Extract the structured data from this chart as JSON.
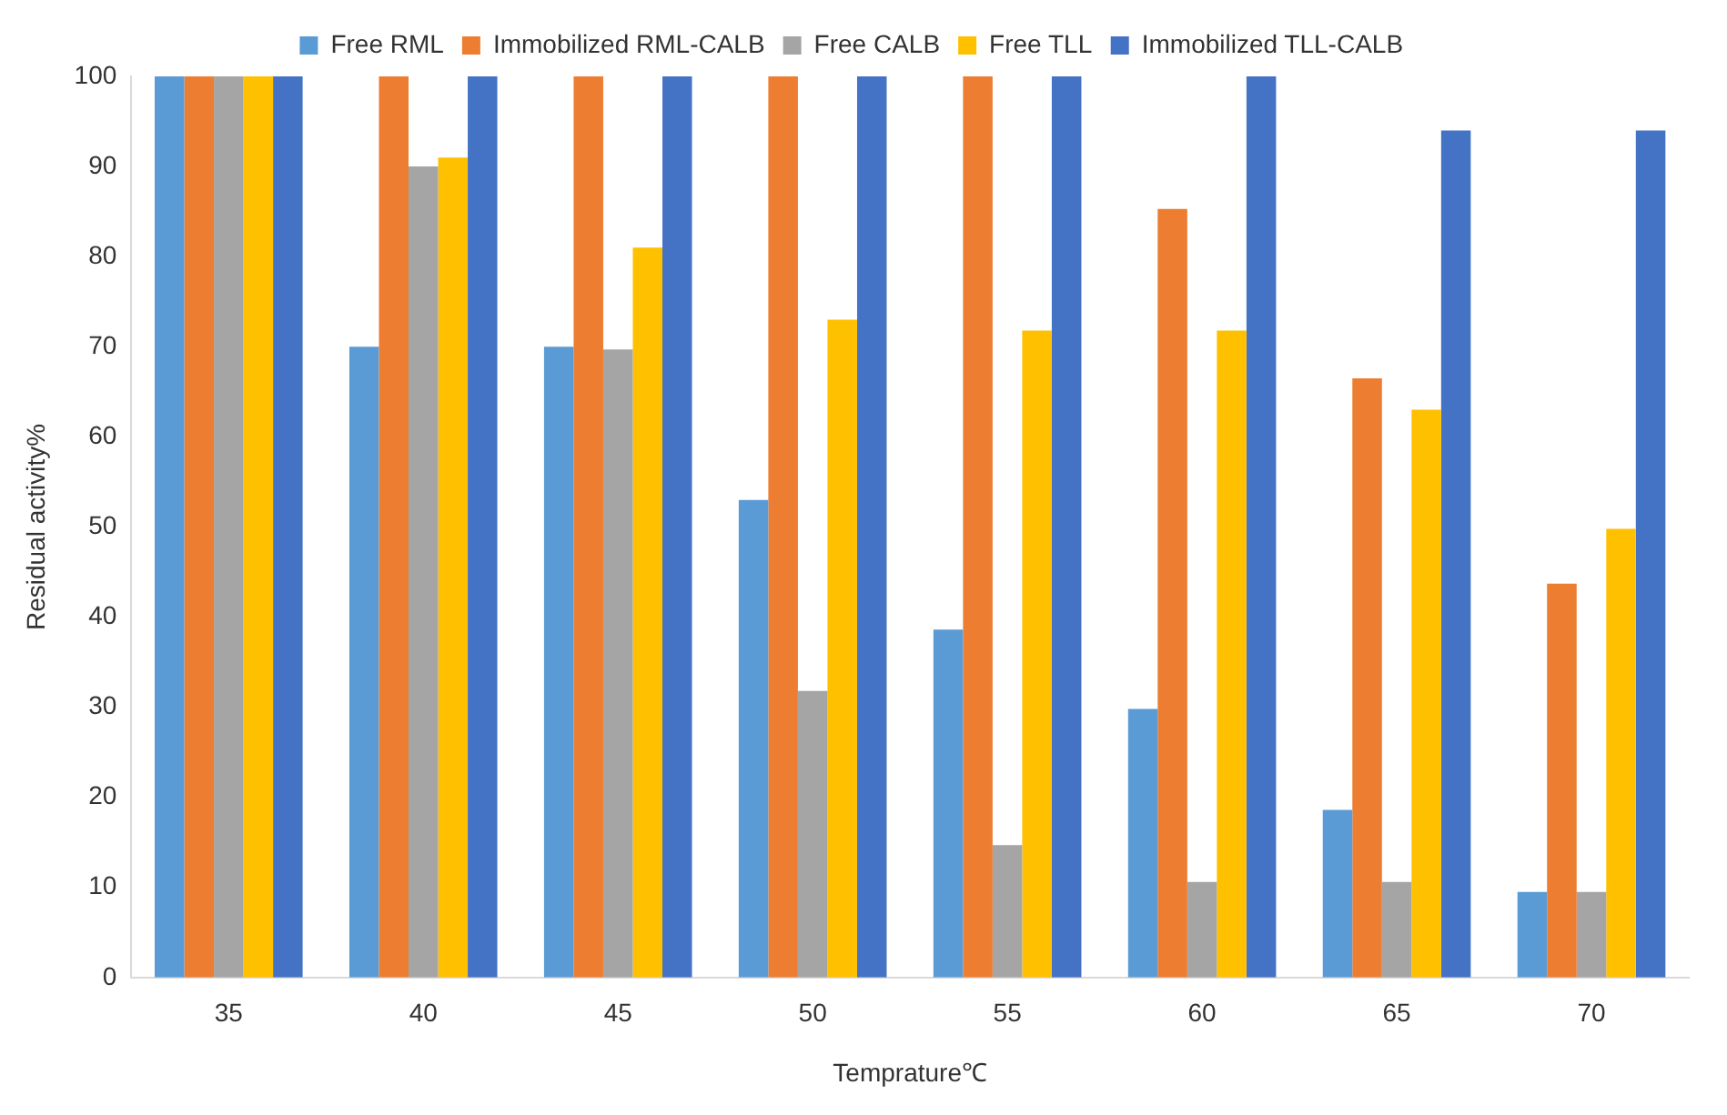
{
  "chart_data": {
    "type": "bar",
    "xlabel": "Temprature℃",
    "ylabel": "Residual activity%",
    "categories": [
      "35",
      "40",
      "45",
      "50",
      "55",
      "60",
      "65",
      "70"
    ],
    "series": [
      {
        "name": "Free RML",
        "color": "#5b9bd5",
        "values": [
          100,
          70,
          70,
          53,
          38.6,
          29.8,
          18.6,
          9.5
        ]
      },
      {
        "name": "Immobilized RML-CALB",
        "color": "#ed7d31",
        "values": [
          100,
          100,
          100,
          100,
          100,
          85.3,
          66.5,
          43.7
        ]
      },
      {
        "name": "Free CALB",
        "color": "#a5a5a5",
        "values": [
          100,
          90,
          69.7,
          31.8,
          14.7,
          10.6,
          10.6,
          9.5
        ]
      },
      {
        "name": "Free TLL",
        "color": "#ffc000",
        "values": [
          100,
          91,
          81,
          73,
          71.8,
          71.8,
          63,
          49.8
        ]
      },
      {
        "name": "Immobilized TLL-CALB",
        "color": "#4472c4",
        "values": [
          100,
          100,
          100,
          100,
          100,
          100,
          94,
          94
        ]
      }
    ],
    "ylim": [
      0,
      100
    ],
    "yticks": [
      0,
      10,
      20,
      30,
      40,
      50,
      60,
      70,
      80,
      90,
      100
    ],
    "grid": false,
    "legend": "top"
  }
}
